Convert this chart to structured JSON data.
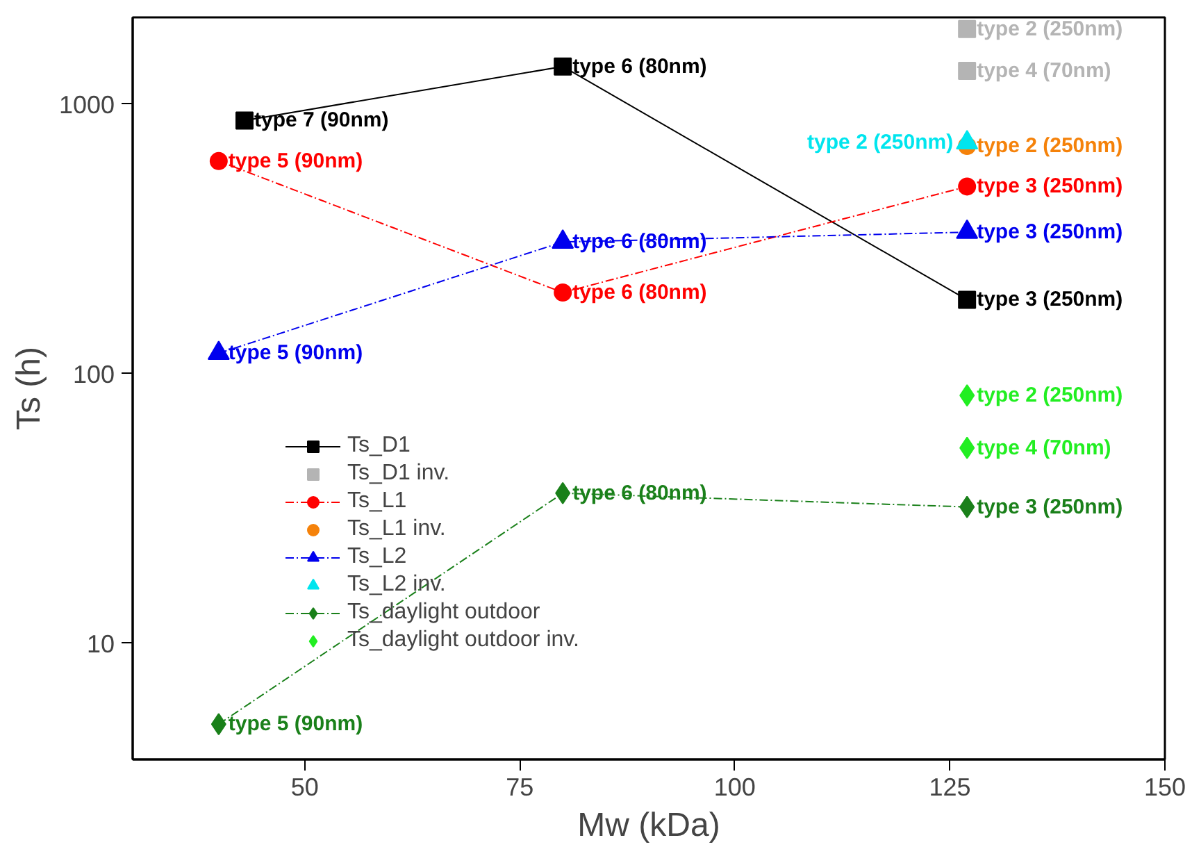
{
  "chart_data": {
    "type": "line",
    "xlabel": "Mw (kDa)",
    "ylabel": "Ts (h)",
    "log": "y",
    "xlim": [
      30,
      150
    ],
    "xticks": [
      50,
      75,
      100,
      125,
      150
    ],
    "ylim": [
      3.7,
      2100
    ],
    "yticks": [
      10,
      100,
      1000
    ],
    "grid": false,
    "legend": "left",
    "series": [
      {
        "name": "Ts_D1",
        "marker": "square",
        "line_style": "solid",
        "color": "#000000",
        "x": [
          43,
          80,
          127
        ],
        "values": [
          870,
          1380,
          188
        ],
        "value_labels": [
          "type 7 (90nm)",
          "type 6 (80nm)",
          "type 3 (250nm)"
        ]
      },
      {
        "name": "Ts_D1 inv.",
        "type": "scatter",
        "marker": "square",
        "color": "#b4b4b4",
        "x": [
          127,
          127
        ],
        "values": [
          1900,
          1330
        ],
        "value_labels": [
          "type 2 (250nm)",
          "type 4 (70nm)"
        ]
      },
      {
        "name": "Ts_L1",
        "marker": "circle",
        "line_style": "dashed",
        "color": "#ff0000",
        "x": [
          40,
          80,
          127
        ],
        "values": [
          615,
          200,
          495
        ],
        "value_labels": [
          "type 5 (90nm)",
          "type 6 (80nm)",
          "type 3 (250nm)"
        ]
      },
      {
        "name": "Ts_L1 inv.",
        "type": "scatter",
        "marker": "circle",
        "color": "#f5820a",
        "x": [
          127
        ],
        "values": [
          700
        ],
        "value_labels": [
          "type 2 (250nm)"
        ]
      },
      {
        "name": "Ts_L2",
        "marker": "triangle",
        "line_style": "dashed",
        "color": "#0000ee",
        "x": [
          40,
          80,
          127
        ],
        "values": [
          119,
          308,
          335
        ],
        "value_labels": [
          "type 5 (90nm)",
          "type 6 (80nm)",
          "type 3 (250nm)"
        ]
      },
      {
        "name": "Ts_L2 inv.",
        "type": "scatter",
        "marker": "triangle",
        "color": "#00e5ee",
        "x": [
          127
        ],
        "values": [
          720
        ],
        "value_labels": [
          "type 2 (250nm)"
        ]
      },
      {
        "name": "Ts_daylight outdoor",
        "marker": "diamond",
        "line_style": "dashed",
        "color": "#1a801a",
        "x": [
          40,
          80,
          127
        ],
        "values": [
          5,
          36,
          32
        ],
        "value_labels": [
          "type 5 (90nm)",
          "type 6 (80nm)",
          "type 3 (250nm)"
        ]
      },
      {
        "name": "Ts_daylight outdoor inv.",
        "type": "scatter",
        "marker": "diamond",
        "color": "#22ee22",
        "x": [
          127,
          127
        ],
        "values": [
          83,
          53
        ],
        "value_labels": [
          "type 2 (250nm)",
          "type 4 (70nm)"
        ]
      }
    ]
  }
}
